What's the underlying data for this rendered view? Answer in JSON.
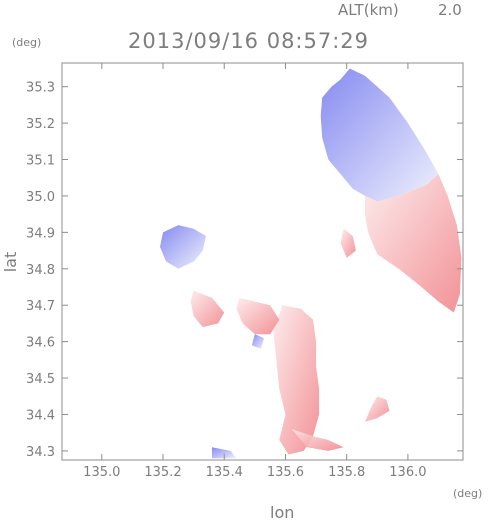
{
  "header": {
    "altitude_label": "ALT(km)",
    "altitude_value": "2.0",
    "timestamp": "2013/09/16 08:57:29"
  },
  "chart_data": {
    "type": "heatmap",
    "title": "2013/09/16 08:57:29",
    "xlabel": "lon",
    "ylabel": "lat",
    "x_unit": "(deg)",
    "y_unit": "(deg)",
    "xlim": [
      134.87,
      136.18
    ],
    "ylim": [
      34.275,
      35.365
    ],
    "x_ticks": [
      135.0,
      135.2,
      135.4,
      135.6,
      135.8,
      136.0
    ],
    "x_tick_labels": [
      "135.0",
      "135.2",
      "135.4",
      "135.6",
      "135.8",
      "136.0"
    ],
    "y_ticks": [
      34.3,
      34.4,
      34.5,
      34.6,
      34.7,
      34.8,
      34.9,
      35.0,
      35.1,
      35.2,
      35.3
    ],
    "y_tick_labels": [
      "34.3",
      "34.4",
      "34.5",
      "34.6",
      "34.7",
      "34.8",
      "34.9",
      "35.0",
      "35.1",
      "35.2",
      "35.3"
    ],
    "colors": {
      "approaching": "#7f84f0",
      "receding": "#f07f84",
      "axis": "#8c8c8c",
      "text": "#7d7d7d"
    },
    "regions": [
      {
        "kind": "blue",
        "points": [
          [
            135.81,
            35.35
          ],
          [
            135.86,
            35.33
          ],
          [
            135.94,
            35.27
          ],
          [
            136.0,
            35.2
          ],
          [
            136.06,
            35.12
          ],
          [
            136.1,
            35.06
          ],
          [
            136.06,
            35.03
          ],
          [
            135.97,
            35.0
          ],
          [
            135.9,
            34.985
          ],
          [
            135.86,
            35.0
          ],
          [
            135.82,
            35.02
          ],
          [
            135.78,
            35.06
          ],
          [
            135.74,
            35.1
          ],
          [
            135.72,
            35.16
          ],
          [
            135.715,
            35.22
          ],
          [
            135.72,
            35.27
          ],
          [
            135.75,
            35.3
          ],
          [
            135.78,
            35.32
          ]
        ]
      },
      {
        "kind": "red",
        "points": [
          [
            136.06,
            35.03
          ],
          [
            136.1,
            35.06
          ],
          [
            136.13,
            35.0
          ],
          [
            136.16,
            34.92
          ],
          [
            136.175,
            34.83
          ],
          [
            136.17,
            34.73
          ],
          [
            136.15,
            34.68
          ],
          [
            136.1,
            34.71
          ],
          [
            136.03,
            34.76
          ],
          [
            135.97,
            34.8
          ],
          [
            135.9,
            34.84
          ],
          [
            135.87,
            34.9
          ],
          [
            135.86,
            34.95
          ],
          [
            135.86,
            35.0
          ],
          [
            135.9,
            34.985
          ],
          [
            135.97,
            35.0
          ]
        ]
      },
      {
        "kind": "blue",
        "points": [
          [
            135.2,
            34.9
          ],
          [
            135.25,
            34.92
          ],
          [
            135.3,
            34.91
          ],
          [
            135.34,
            34.89
          ],
          [
            135.33,
            34.85
          ],
          [
            135.3,
            34.82
          ],
          [
            135.25,
            34.8
          ],
          [
            135.21,
            34.82
          ],
          [
            135.19,
            34.86
          ]
        ]
      },
      {
        "kind": "red",
        "points": [
          [
            135.59,
            34.7
          ],
          [
            135.65,
            34.69
          ],
          [
            135.69,
            34.66
          ],
          [
            135.7,
            34.6
          ],
          [
            135.7,
            34.53
          ],
          [
            135.71,
            34.47
          ],
          [
            135.71,
            34.4
          ],
          [
            135.69,
            34.34
          ],
          [
            135.66,
            34.3
          ],
          [
            135.61,
            34.29
          ],
          [
            135.58,
            34.33
          ],
          [
            135.6,
            34.4
          ],
          [
            135.58,
            34.47
          ],
          [
            135.57,
            34.55
          ],
          [
            135.56,
            34.63
          ]
        ]
      },
      {
        "kind": "red",
        "points": [
          [
            135.62,
            34.36
          ],
          [
            135.67,
            34.31
          ],
          [
            135.74,
            34.3
          ],
          [
            135.79,
            34.31
          ],
          [
            135.74,
            34.33
          ],
          [
            135.69,
            34.34
          ]
        ]
      },
      {
        "kind": "red",
        "points": [
          [
            135.3,
            34.74
          ],
          [
            135.36,
            34.72
          ],
          [
            135.4,
            34.68
          ],
          [
            135.38,
            34.65
          ],
          [
            135.33,
            34.64
          ],
          [
            135.3,
            34.67
          ],
          [
            135.29,
            34.71
          ]
        ]
      },
      {
        "kind": "red",
        "points": [
          [
            135.45,
            34.72
          ],
          [
            135.55,
            34.7
          ],
          [
            135.58,
            34.66
          ],
          [
            135.55,
            34.62
          ],
          [
            135.5,
            34.62
          ],
          [
            135.46,
            34.65
          ],
          [
            135.44,
            34.69
          ]
        ]
      },
      {
        "kind": "red",
        "points": [
          [
            135.79,
            34.91
          ],
          [
            135.82,
            34.89
          ],
          [
            135.83,
            34.85
          ],
          [
            135.8,
            34.83
          ],
          [
            135.78,
            34.87
          ]
        ]
      },
      {
        "kind": "red",
        "points": [
          [
            135.9,
            34.45
          ],
          [
            135.93,
            34.44
          ],
          [
            135.94,
            34.41
          ],
          [
            135.9,
            34.39
          ],
          [
            135.86,
            34.38
          ],
          [
            135.88,
            34.42
          ]
        ]
      },
      {
        "kind": "blue",
        "points": [
          [
            135.5,
            34.62
          ],
          [
            135.53,
            34.61
          ],
          [
            135.52,
            34.58
          ],
          [
            135.49,
            34.59
          ]
        ]
      },
      {
        "kind": "blue",
        "points": [
          [
            135.36,
            34.31
          ],
          [
            135.42,
            34.3
          ],
          [
            135.44,
            34.28
          ],
          [
            135.36,
            34.28
          ]
        ]
      }
    ]
  }
}
